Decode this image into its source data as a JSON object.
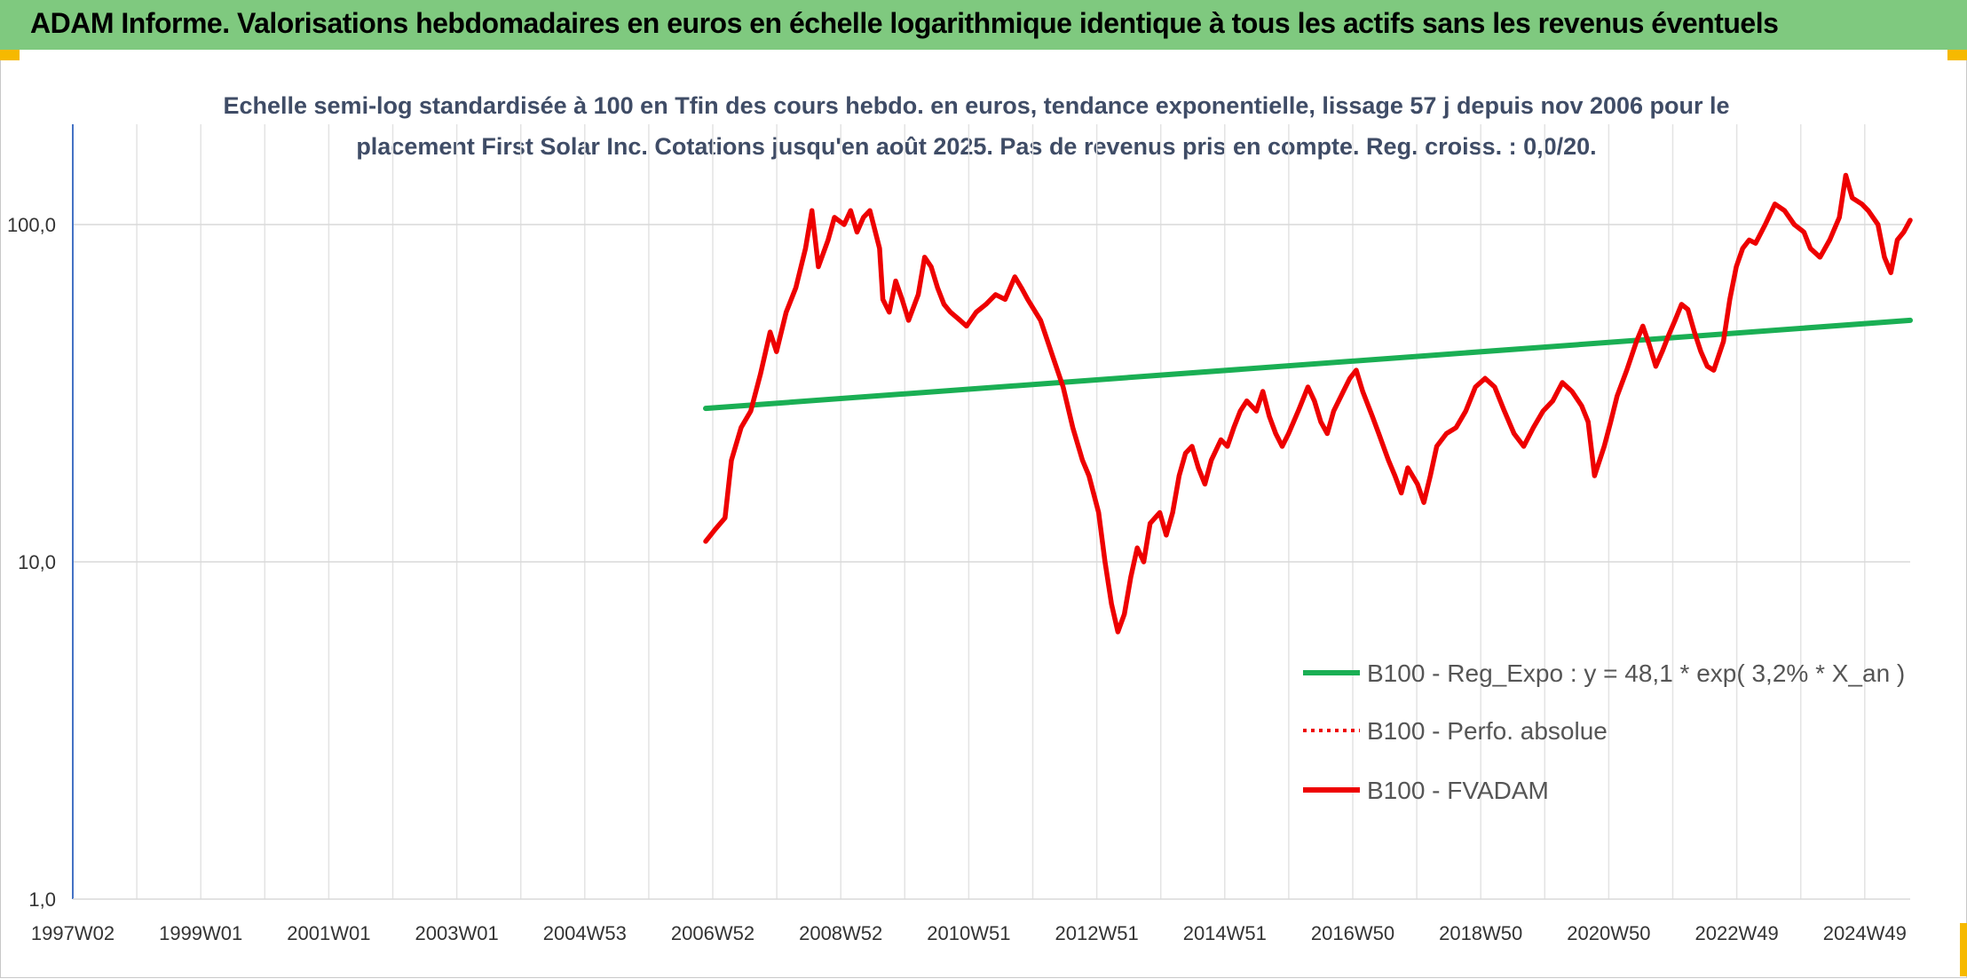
{
  "header": {
    "title": "ADAM Informe. Valorisations hebdomadaires en euros en échelle logarithmique identique à tous les actifs sans les revenus éventuels"
  },
  "colors": {
    "banner": "#7fc97f",
    "accent": "#f6b900",
    "regression": "#1aaf54",
    "fvadam": "#ee0000",
    "perfo": "#ee0000",
    "subtitle": "#3f4c66"
  },
  "chart_data": {
    "type": "line",
    "title": "Echelle semi-log standardisée à 100 en Tfin des cours hebdo. en euros, tendance exponentielle, lissage 57 j depuis nov 2006 pour le",
    "subtitle": "placement First Solar Inc. Cotations jusqu'en août 2025. Pas de revenus pris en compte. Reg. croiss. : 0,0/20.",
    "y_scale": "log",
    "ylim": [
      1,
      100
    ],
    "y_ticks": [
      "100,0",
      "10,0",
      "1,0"
    ],
    "x_ticks": [
      "1997W02",
      "1999W01",
      "2001W01",
      "2003W01",
      "2004W53",
      "2006W52",
      "2008W52",
      "2010W51",
      "2012W51",
      "2014W51",
      "2016W50",
      "2018W50",
      "2020W50",
      "2022W49",
      "2024W49"
    ],
    "grid": true,
    "legend_position": "bottom-right",
    "legend": [
      {
        "label": "B100 - Reg_Expo : y = 48,1 * exp( 3,2% *  X_an )",
        "style": "solid",
        "color": "#1aaf54"
      },
      {
        "label": "B100 - Perfo. absolue",
        "style": "dotted",
        "color": "#ee0000"
      },
      {
        "label": "B100 - FVADAM",
        "style": "solid",
        "color": "#ee0000"
      }
    ],
    "series": [
      {
        "name": "B100 - Reg_Expo : y = 48,1 * exp( 3,2% *  X_an )",
        "points": [
          [
            2006.9,
            28.5
          ],
          [
            2025.6,
            52.0
          ]
        ]
      },
      {
        "name": "B100 - FVADAM",
        "points": [
          [
            2006.9,
            11.5
          ],
          [
            2007.05,
            12.5
          ],
          [
            2007.2,
            13.5
          ],
          [
            2007.3,
            20
          ],
          [
            2007.45,
            25
          ],
          [
            2007.6,
            28
          ],
          [
            2007.75,
            36
          ],
          [
            2007.9,
            48
          ],
          [
            2008.0,
            42
          ],
          [
            2008.15,
            55
          ],
          [
            2008.3,
            65
          ],
          [
            2008.45,
            85
          ],
          [
            2008.55,
            110
          ],
          [
            2008.65,
            75
          ],
          [
            2008.8,
            90
          ],
          [
            2008.9,
            105
          ],
          [
            2009.05,
            100
          ],
          [
            2009.15,
            110
          ],
          [
            2009.25,
            95
          ],
          [
            2009.35,
            105
          ],
          [
            2009.45,
            110
          ],
          [
            2009.6,
            85
          ],
          [
            2009.65,
            60
          ],
          [
            2009.75,
            55
          ],
          [
            2009.85,
            68
          ],
          [
            2009.95,
            60
          ],
          [
            2010.05,
            52
          ],
          [
            2010.2,
            62
          ],
          [
            2010.3,
            80
          ],
          [
            2010.4,
            75
          ],
          [
            2010.5,
            65
          ],
          [
            2010.6,
            58
          ],
          [
            2010.7,
            55
          ],
          [
            2010.85,
            52
          ],
          [
            2010.95,
            50
          ],
          [
            2011.1,
            55
          ],
          [
            2011.25,
            58
          ],
          [
            2011.4,
            62
          ],
          [
            2011.55,
            60
          ],
          [
            2011.7,
            70
          ],
          [
            2011.8,
            65
          ],
          [
            2011.9,
            60
          ],
          [
            2012.1,
            52
          ],
          [
            2012.3,
            40
          ],
          [
            2012.45,
            33
          ],
          [
            2012.6,
            25
          ],
          [
            2012.75,
            20
          ],
          [
            2012.85,
            18
          ],
          [
            2013.0,
            14
          ],
          [
            2013.1,
            10
          ],
          [
            2013.2,
            7.5
          ],
          [
            2013.3,
            6.2
          ],
          [
            2013.4,
            7
          ],
          [
            2013.5,
            9
          ],
          [
            2013.6,
            11
          ],
          [
            2013.7,
            10
          ],
          [
            2013.8,
            13
          ],
          [
            2013.95,
            14
          ],
          [
            2014.05,
            12
          ],
          [
            2014.15,
            14
          ],
          [
            2014.25,
            18
          ],
          [
            2014.35,
            21
          ],
          [
            2014.45,
            22
          ],
          [
            2014.55,
            19
          ],
          [
            2014.65,
            17
          ],
          [
            2014.75,
            20
          ],
          [
            2014.9,
            23
          ],
          [
            2015.0,
            22
          ],
          [
            2015.1,
            25
          ],
          [
            2015.2,
            28
          ],
          [
            2015.3,
            30
          ],
          [
            2015.45,
            28
          ],
          [
            2015.55,
            32
          ],
          [
            2015.65,
            27
          ],
          [
            2015.75,
            24
          ],
          [
            2015.85,
            22
          ],
          [
            2015.95,
            24
          ],
          [
            2016.1,
            28
          ],
          [
            2016.25,
            33
          ],
          [
            2016.35,
            30
          ],
          [
            2016.45,
            26
          ],
          [
            2016.55,
            24
          ],
          [
            2016.65,
            28
          ],
          [
            2016.8,
            32
          ],
          [
            2016.9,
            35
          ],
          [
            2017.0,
            37
          ],
          [
            2017.1,
            32
          ],
          [
            2017.25,
            27
          ],
          [
            2017.35,
            24
          ],
          [
            2017.5,
            20
          ],
          [
            2017.6,
            18
          ],
          [
            2017.7,
            16
          ],
          [
            2017.8,
            19
          ],
          [
            2017.95,
            17
          ],
          [
            2018.05,
            15
          ],
          [
            2018.15,
            18
          ],
          [
            2018.25,
            22
          ],
          [
            2018.4,
            24
          ],
          [
            2018.55,
            25
          ],
          [
            2018.7,
            28
          ],
          [
            2018.85,
            33
          ],
          [
            2019.0,
            35
          ],
          [
            2019.15,
            33
          ],
          [
            2019.3,
            28
          ],
          [
            2019.45,
            24
          ],
          [
            2019.6,
            22
          ],
          [
            2019.75,
            25
          ],
          [
            2019.9,
            28
          ],
          [
            2020.05,
            30
          ],
          [
            2020.2,
            34
          ],
          [
            2020.35,
            32
          ],
          [
            2020.5,
            29
          ],
          [
            2020.6,
            26
          ],
          [
            2020.7,
            18
          ],
          [
            2020.85,
            22
          ],
          [
            2020.95,
            26
          ],
          [
            2021.05,
            31
          ],
          [
            2021.2,
            37
          ],
          [
            2021.35,
            45
          ],
          [
            2021.45,
            50
          ],
          [
            2021.55,
            44
          ],
          [
            2021.65,
            38
          ],
          [
            2021.75,
            42
          ],
          [
            2021.85,
            47
          ],
          [
            2021.95,
            52
          ],
          [
            2022.05,
            58
          ],
          [
            2022.15,
            56
          ],
          [
            2022.25,
            48
          ],
          [
            2022.35,
            42
          ],
          [
            2022.45,
            38
          ],
          [
            2022.55,
            37
          ],
          [
            2022.7,
            45
          ],
          [
            2022.8,
            60
          ],
          [
            2022.9,
            75
          ],
          [
            2023.0,
            85
          ],
          [
            2023.1,
            90
          ],
          [
            2023.2,
            88
          ],
          [
            2023.35,
            100
          ],
          [
            2023.5,
            115
          ],
          [
            2023.65,
            110
          ],
          [
            2023.8,
            100
          ],
          [
            2023.95,
            95
          ],
          [
            2024.05,
            85
          ],
          [
            2024.2,
            80
          ],
          [
            2024.35,
            90
          ],
          [
            2024.5,
            105
          ],
          [
            2024.6,
            140
          ],
          [
            2024.7,
            120
          ],
          [
            2024.85,
            115
          ],
          [
            2024.95,
            110
          ],
          [
            2025.1,
            100
          ],
          [
            2025.2,
            80
          ],
          [
            2025.3,
            72
          ],
          [
            2025.4,
            90
          ],
          [
            2025.5,
            95
          ],
          [
            2025.6,
            103
          ]
        ]
      }
    ]
  }
}
